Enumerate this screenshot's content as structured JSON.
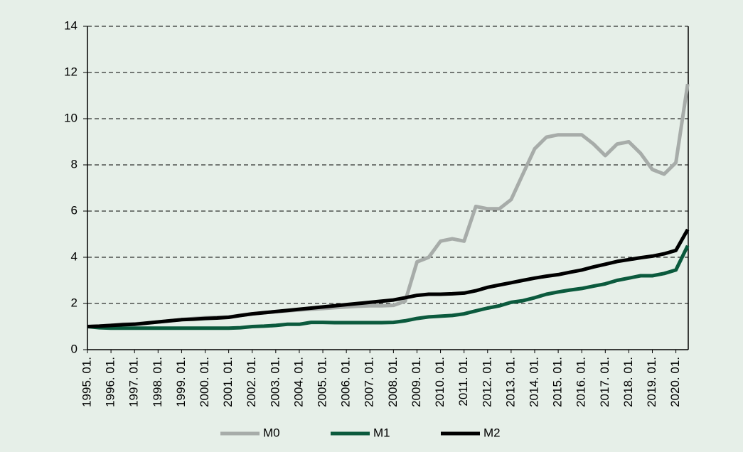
{
  "chart_data": {
    "type": "line",
    "categories": [
      "1995. 01.",
      null,
      "1996. 01.",
      null,
      "1997. 01.",
      null,
      "1998. 01.",
      null,
      "1999. 01.",
      null,
      "2000. 01.",
      null,
      "2001. 01.",
      null,
      "2002. 01.",
      null,
      "2003. 01.",
      null,
      "2004. 01.",
      null,
      "2005. 01.",
      null,
      "2006. 01.",
      null,
      "2007. 01.",
      null,
      "2008. 01.",
      null,
      "2009. 01.",
      null,
      "2010. 01.",
      null,
      "2011. 01.",
      null,
      "2012. 01.",
      null,
      "2013. 01.",
      null,
      "2014. 01.",
      null,
      "2015. 01.",
      null,
      "2016. 01.",
      null,
      "2017. 01.",
      null,
      "2018. 01.",
      null,
      "2019. 01.",
      null,
      "2020. 01.",
      null
    ],
    "series": [
      {
        "name": "M0",
        "color": "#a7aca9",
        "values": [
          1.0,
          1.02,
          1.05,
          1.1,
          1.12,
          1.15,
          1.2,
          1.25,
          1.3,
          1.35,
          1.38,
          1.4,
          1.42,
          1.48,
          1.55,
          1.6,
          1.65,
          1.68,
          1.72,
          1.75,
          1.78,
          1.82,
          1.85,
          1.88,
          1.9,
          1.9,
          1.92,
          2.1,
          3.8,
          4.0,
          4.7,
          4.8,
          4.7,
          6.2,
          6.1,
          6.1,
          6.5,
          7.6,
          8.7,
          9.2,
          9.3,
          9.3,
          9.3,
          8.9,
          8.4,
          8.9,
          9.0,
          8.5,
          7.8,
          7.6,
          8.1,
          11.5
        ]
      },
      {
        "name": "M1",
        "color": "#0b5a3d",
        "values": [
          1.0,
          0.95,
          0.93,
          0.93,
          0.93,
          0.93,
          0.93,
          0.93,
          0.93,
          0.93,
          0.93,
          0.93,
          0.93,
          0.95,
          1.0,
          1.02,
          1.05,
          1.1,
          1.1,
          1.18,
          1.18,
          1.17,
          1.17,
          1.17,
          1.17,
          1.17,
          1.18,
          1.25,
          1.35,
          1.42,
          1.45,
          1.48,
          1.55,
          1.68,
          1.8,
          1.9,
          2.05,
          2.12,
          2.25,
          2.4,
          2.5,
          2.58,
          2.65,
          2.75,
          2.85,
          3.0,
          3.1,
          3.2,
          3.2,
          3.3,
          3.45,
          4.5
        ]
      },
      {
        "name": "M2",
        "color": "#000000",
        "values": [
          1.0,
          1.02,
          1.05,
          1.08,
          1.1,
          1.15,
          1.2,
          1.25,
          1.3,
          1.32,
          1.35,
          1.37,
          1.4,
          1.48,
          1.55,
          1.6,
          1.65,
          1.7,
          1.75,
          1.8,
          1.85,
          1.9,
          1.95,
          2.0,
          2.05,
          2.1,
          2.15,
          2.25,
          2.35,
          2.4,
          2.4,
          2.42,
          2.45,
          2.55,
          2.7,
          2.8,
          2.9,
          3.0,
          3.1,
          3.18,
          3.25,
          3.35,
          3.45,
          3.58,
          3.7,
          3.82,
          3.9,
          3.98,
          4.05,
          4.15,
          4.3,
          5.2
        ]
      }
    ],
    "ylim": [
      0,
      14
    ],
    "yticks": [
      0,
      2,
      4,
      6,
      8,
      10,
      12,
      14
    ],
    "grid": true,
    "legend": "bottom"
  }
}
